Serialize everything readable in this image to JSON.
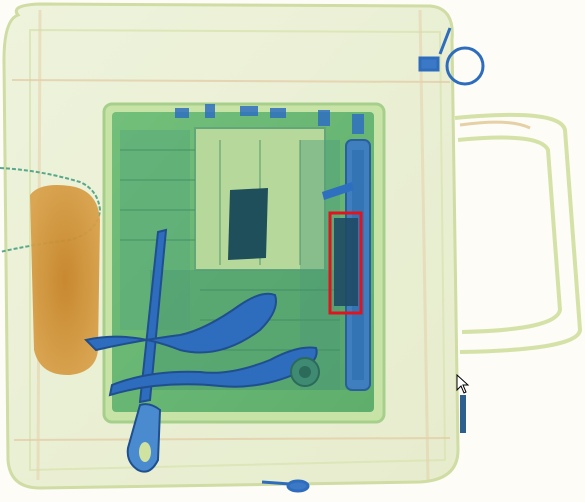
{
  "scan": {
    "background_color": "#fdfcf7",
    "organic_color": "#c98a2a",
    "mixed_color": "#7fc36a",
    "metal_color": "#2f6fc0",
    "dense_color": "#1f4f5a",
    "highlight_color": "#e0141e"
  },
  "detections": [
    {
      "label": "",
      "highlight": true
    }
  ],
  "icons": {
    "cursor": "arrow-cursor-icon"
  }
}
